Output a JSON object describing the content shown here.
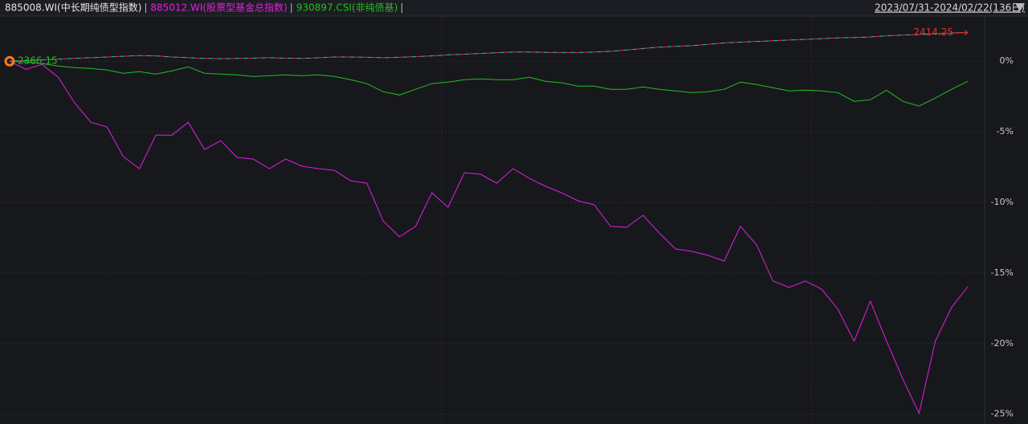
{
  "chart_data": {
    "type": "line",
    "date_range": "2023/07/31-2024/02/22(136日)",
    "start_label": "2366.15",
    "end_label": "2414.25",
    "ylim": [
      -25.7,
      3.2
    ],
    "yticks": [
      {
        "value": 0,
        "label": "0%"
      },
      {
        "value": -5,
        "label": "-5%"
      },
      {
        "value": -10,
        "label": "-10%"
      },
      {
        "value": -15,
        "label": "-15%"
      },
      {
        "value": -20,
        "label": "-20%"
      },
      {
        "value": -25,
        "label": "-25%"
      }
    ],
    "grid": true,
    "series": [
      {
        "name": "885008.WI(中长期纯债型指数)",
        "color": "#e03030",
        "label_color": "#e6e6e6",
        "dashed": true,
        "values": [
          0,
          0.05,
          0.1,
          0.15,
          0.2,
          0.25,
          0.3,
          0.35,
          0.4,
          0.38,
          0.3,
          0.25,
          0.2,
          0.18,
          0.2,
          0.22,
          0.25,
          0.22,
          0.2,
          0.25,
          0.3,
          0.3,
          0.28,
          0.25,
          0.28,
          0.32,
          0.38,
          0.45,
          0.5,
          0.55,
          0.6,
          0.65,
          0.65,
          0.63,
          0.62,
          0.62,
          0.65,
          0.7,
          0.8,
          0.9,
          1.0,
          1.05,
          1.1,
          1.2,
          1.3,
          1.35,
          1.4,
          1.45,
          1.5,
          1.55,
          1.6,
          1.65,
          1.68,
          1.72,
          1.8,
          1.85,
          1.9,
          1.95,
          2.0,
          2.03
        ]
      },
      {
        "name": "885012.WI(股票型基金总指数)",
        "color": "#e020e0",
        "label_color": "#e020e0",
        "dashed": false,
        "values": [
          0,
          -0.57,
          -0.23,
          -1.14,
          -2.95,
          -4.32,
          -4.66,
          -6.76,
          -7.61,
          -5.23,
          -5.23,
          -4.32,
          -6.25,
          -5.63,
          -6.82,
          -6.93,
          -7.61,
          -6.93,
          -7.44,
          -7.61,
          -7.73,
          -8.47,
          -8.64,
          -11.31,
          -12.44,
          -11.7,
          -9.32,
          -10.34,
          -7.9,
          -8.01,
          -8.64,
          -7.61,
          -8.3,
          -8.86,
          -9.32,
          -9.89,
          -10.17,
          -11.7,
          -11.76,
          -10.91,
          -12.16,
          -13.3,
          -13.47,
          -13.75,
          -14.15,
          -11.7,
          -13.01,
          -15.57,
          -16.02,
          -15.57,
          -16.14,
          -17.56,
          -19.83,
          -16.99,
          -19.83,
          -22.5,
          -24.94,
          -19.83,
          -17.44,
          -15.97
        ]
      },
      {
        "name": "930897.CSI(非纯债基)",
        "color": "#20c020",
        "label_color": "#20c020",
        "dashed": false,
        "values": [
          0,
          -0.06,
          -0.17,
          -0.34,
          -0.45,
          -0.51,
          -0.62,
          -0.85,
          -0.74,
          -0.91,
          -0.68,
          -0.4,
          -0.85,
          -0.91,
          -0.97,
          -1.08,
          -1.02,
          -0.97,
          -1.02,
          -0.97,
          -1.08,
          -1.31,
          -1.59,
          -2.16,
          -2.39,
          -1.99,
          -1.59,
          -1.48,
          -1.31,
          -1.25,
          -1.31,
          -1.31,
          -1.14,
          -1.42,
          -1.53,
          -1.76,
          -1.76,
          -1.99,
          -1.99,
          -1.82,
          -1.99,
          -2.1,
          -2.22,
          -2.16,
          -1.99,
          -1.48,
          -1.65,
          -1.88,
          -2.1,
          -2.05,
          -2.1,
          -2.22,
          -2.84,
          -2.73,
          -2.05,
          -2.84,
          -3.18,
          -2.61,
          -1.99,
          -1.42
        ]
      }
    ]
  }
}
